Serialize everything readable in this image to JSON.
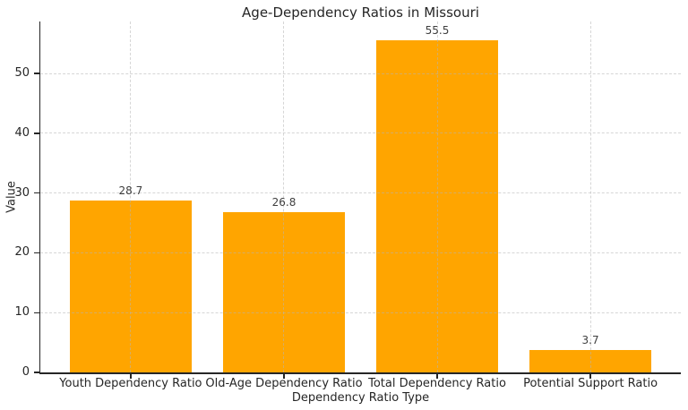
{
  "chart_data": {
    "type": "bar",
    "title": "Age-Dependency Ratios in Missouri",
    "xlabel": "Dependency Ratio Type",
    "ylabel": "Value",
    "categories": [
      "Youth Dependency Ratio",
      "Old-Age Dependency Ratio",
      "Total Dependency Ratio",
      "Potential Support Ratio"
    ],
    "values": [
      28.7,
      26.8,
      55.5,
      3.7
    ],
    "value_labels": [
      "28.7",
      "26.8",
      "55.5",
      "3.7"
    ],
    "yticks": [
      0,
      10,
      20,
      30,
      40,
      50
    ],
    "ylim": [
      0,
      58.7
    ],
    "bar_color": "#FFA500",
    "grid": "dashed, horizontal and vertical, drawn over bars",
    "legend": "none",
    "spines": "left and bottom only"
  }
}
